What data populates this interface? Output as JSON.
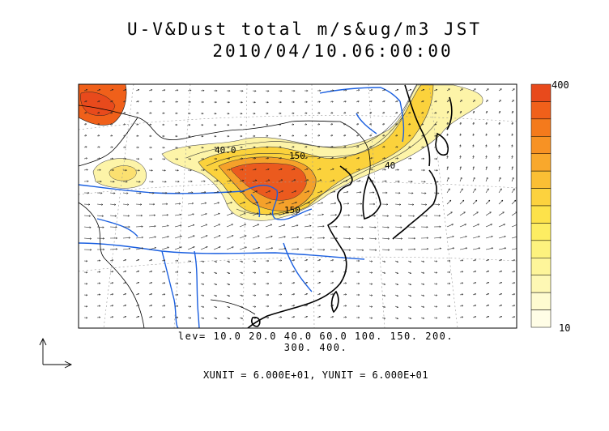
{
  "title": {
    "line1": "U-V&Dust total m/s&ug/m3 JST",
    "line2": "2010/04/10.06:00:00"
  },
  "colorbar": {
    "max_label": "400",
    "min_label": "10",
    "colors": [
      "#e84a1c",
      "#f0601a",
      "#f47a1c",
      "#f79224",
      "#f9a82c",
      "#fbbf34",
      "#fcd23e",
      "#fde24a",
      "#fded62",
      "#fdf27e",
      "#fef59a",
      "#fef8b4",
      "#fefbd0",
      "#fffde6"
    ]
  },
  "map": {
    "contour_labels": [
      "40.0",
      "150",
      "150",
      "40"
    ],
    "dust_colors": {
      "low": "#fdf4a8",
      "mid": "#fbd23c",
      "high": "#f5a12a",
      "peak": "#eb5a1e"
    },
    "coast_color": "#000000",
    "river_color": "#1a5fe0"
  },
  "legend": {
    "levels_line1": "lev= 10.0 20.0 40.0 60.0 100. 150. 200.",
    "levels_line2": "300. 400.",
    "units": "XUNIT = 6.000E+01, YUNIT = 6.000E+01"
  }
}
